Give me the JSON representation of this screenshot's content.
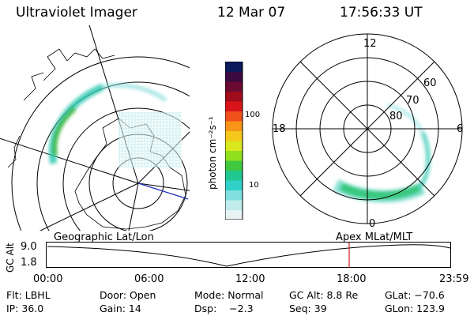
{
  "header": {
    "title": "Ultraviolet Imager",
    "date": "12 Mar 07",
    "time": "17:56:33 UT"
  },
  "colorbar": {
    "label": "photon cm⁻²s⁻¹",
    "ticks": [
      "100",
      "10"
    ],
    "colors": [
      "#0a1a5a",
      "#3a0a40",
      "#6a0a30",
      "#a00c1c",
      "#d8141a",
      "#f0501a",
      "#f89418",
      "#f4c81c",
      "#d8e81c",
      "#90e020",
      "#40c840",
      "#20c890",
      "#30d0c8",
      "#80e0e0",
      "#c0ecec",
      "#e8f4f4"
    ]
  },
  "polar_plot": {
    "mlt_labels": [
      "12",
      "18",
      "6",
      "0"
    ],
    "mlat_labels": [
      "60",
      "70",
      "80"
    ]
  },
  "timeline": {
    "left_label": "Geographic Lat/Lon",
    "right_label": "Apex  MLat/MLT",
    "y_axis_label": "GC Alt",
    "y_ticks": [
      "9.0",
      "1.8"
    ],
    "x_ticks": [
      "00:00",
      "06:00",
      "12:00",
      "18:00",
      "23:59"
    ],
    "marker_color": "#d02020"
  },
  "footer": {
    "row1": {
      "filter": "Flt: LBHL",
      "door": "Door: Open",
      "mode": "Mode: Normal",
      "gc_alt": "GC Alt: 8.8 Re",
      "glat": "GLat: −70.6"
    },
    "row2": {
      "ip": "IP: 36.0",
      "gain": "Gain: 14",
      "dsp": "Dsp:    −2.3",
      "seq": "Seq: 39",
      "glon": "GLon: 123.9"
    }
  }
}
